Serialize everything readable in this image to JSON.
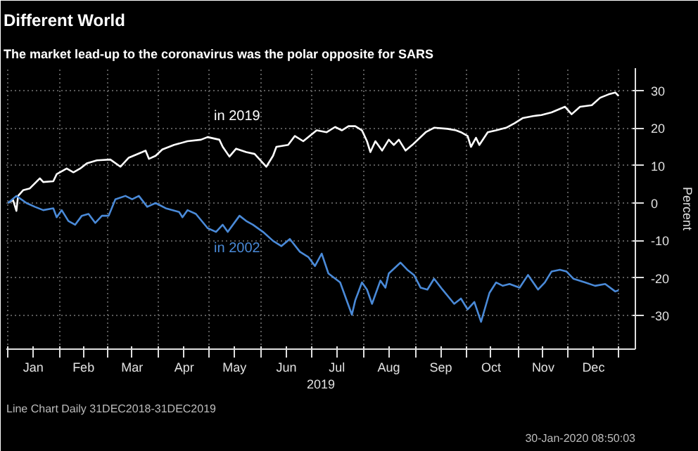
{
  "chart_data": {
    "type": "line",
    "title": "Different World",
    "subtitle": "The market lead-up to the coronavirus was the polar opposite for SARS",
    "xlabel": "2019",
    "ylabel": "Percent",
    "xlim": [
      "2018-12-31",
      "2020-01-10"
    ],
    "xticks": [
      {
        "value": "2019-01-01",
        "label": null
      },
      {
        "value": "2019-01-16",
        "label": "Jan"
      },
      {
        "value": "2019-02-01",
        "label": null
      },
      {
        "value": "2019-02-15",
        "label": "Feb"
      },
      {
        "value": "2019-03-01",
        "label": null
      },
      {
        "value": "2019-03-16",
        "label": "Mar"
      },
      {
        "value": "2019-04-01",
        "label": null
      },
      {
        "value": "2019-04-16",
        "label": "Apr"
      },
      {
        "value": "2019-05-01",
        "label": null
      },
      {
        "value": "2019-05-16",
        "label": "May"
      },
      {
        "value": "2019-06-01",
        "label": null
      },
      {
        "value": "2019-06-16",
        "label": "Jun"
      },
      {
        "value": "2019-07-01",
        "label": null
      },
      {
        "value": "2019-07-16",
        "label": "Jul"
      },
      {
        "value": "2019-08-01",
        "label": null
      },
      {
        "value": "2019-08-16",
        "label": "Aug"
      },
      {
        "value": "2019-09-01",
        "label": null
      },
      {
        "value": "2019-09-16",
        "label": "Sep"
      },
      {
        "value": "2019-10-01",
        "label": null
      },
      {
        "value": "2019-10-16",
        "label": "Oct"
      },
      {
        "value": "2019-11-01",
        "label": null
      },
      {
        "value": "2019-11-16",
        "label": "Nov"
      },
      {
        "value": "2019-12-01",
        "label": null
      },
      {
        "value": "2019-12-16",
        "label": "Dec"
      },
      {
        "value": "2019-12-31",
        "label": null
      }
    ],
    "ylim": [
      -39,
      36
    ],
    "yticks": [
      -30,
      -20,
      -10,
      0,
      10,
      20,
      30
    ],
    "grid": true,
    "legend": false,
    "line_style": "solid",
    "annotations": [
      "Line Chart  Daily 31DEC2018-31DEC2019",
      "30-Jan-2020 08:50:03"
    ],
    "series": [
      {
        "name": "in 2019",
        "color": "#ffffff",
        "x": [
          "2019-01-01",
          "2019-01-04",
          "2019-01-06",
          "2019-01-07",
          "2019-01-10",
          "2019-01-14",
          "2019-01-20",
          "2019-01-22",
          "2019-01-28",
          "2019-01-30",
          "2019-02-05",
          "2019-02-09",
          "2019-02-13",
          "2019-02-17",
          "2019-02-23",
          "2019-03-03",
          "2019-03-09",
          "2019-03-14",
          "2019-03-22",
          "2019-03-24",
          "2019-03-26",
          "2019-03-30",
          "2019-04-03",
          "2019-04-10",
          "2019-04-18",
          "2019-04-26",
          "2019-04-30",
          "2019-05-07",
          "2019-05-09",
          "2019-05-13",
          "2019-05-17",
          "2019-05-23",
          "2019-05-28",
          "2019-06-04",
          "2019-06-08",
          "2019-06-10",
          "2019-06-17",
          "2019-06-21",
          "2019-06-26",
          "2019-07-04",
          "2019-07-10",
          "2019-07-15",
          "2019-07-19",
          "2019-07-23",
          "2019-07-27",
          "2019-07-31",
          "2019-08-03",
          "2019-08-05",
          "2019-08-08",
          "2019-08-12",
          "2019-08-16",
          "2019-08-19",
          "2019-08-22",
          "2019-08-26",
          "2019-08-30",
          "2019-09-07",
          "2019-09-12",
          "2019-09-20",
          "2019-09-25",
          "2019-09-28",
          "2019-10-02",
          "2019-10-04",
          "2019-10-07",
          "2019-10-09",
          "2019-10-14",
          "2019-10-19",
          "2019-10-25",
          "2019-10-30",
          "2019-11-04",
          "2019-11-10",
          "2019-11-15",
          "2019-11-21",
          "2019-11-29",
          "2019-12-03",
          "2019-12-08",
          "2019-12-15",
          "2019-12-20",
          "2019-12-25",
          "2019-12-29",
          "2019-12-31"
        ],
        "values": [
          0,
          0.8,
          -2.1,
          1.9,
          3.4,
          3.9,
          6.6,
          5.6,
          5.8,
          7.7,
          9.2,
          8.2,
          9.2,
          10.6,
          11.4,
          11.6,
          9.7,
          12.1,
          13.6,
          14.0,
          11.8,
          12.6,
          14.3,
          15.5,
          16.5,
          16.9,
          17.6,
          16.9,
          15.0,
          12.4,
          14.5,
          13.6,
          13.1,
          9.7,
          12.6,
          15.0,
          15.5,
          17.9,
          16.5,
          19.4,
          18.9,
          20.3,
          19.4,
          20.5,
          20.5,
          19.4,
          16.5,
          13.6,
          16.5,
          14.0,
          16.9,
          15.5,
          16.9,
          14.0,
          15.5,
          18.9,
          20.1,
          19.8,
          19.4,
          18.9,
          17.9,
          15.0,
          17.4,
          15.5,
          18.9,
          19.4,
          20.1,
          21.3,
          22.7,
          23.2,
          23.5,
          24.2,
          25.7,
          23.7,
          25.7,
          26.1,
          28.1,
          29.0,
          29.5,
          28.6
        ]
      },
      {
        "name": "in 2002",
        "color": "#4a8ad8",
        "x": [
          "2019-01-01",
          "2019-01-06",
          "2019-01-12",
          "2019-01-17",
          "2019-01-22",
          "2019-01-28",
          "2019-01-30",
          "2019-02-02",
          "2019-02-06",
          "2019-02-10",
          "2019-02-14",
          "2019-02-18",
          "2019-02-22",
          "2019-02-26",
          "2019-03-02",
          "2019-03-06",
          "2019-03-12",
          "2019-03-16",
          "2019-03-20",
          "2019-03-25",
          "2019-03-30",
          "2019-04-05",
          "2019-04-13",
          "2019-04-15",
          "2019-04-18",
          "2019-04-23",
          "2019-04-30",
          "2019-05-05",
          "2019-05-09",
          "2019-05-12",
          "2019-05-19",
          "2019-05-23",
          "2019-05-27",
          "2019-06-02",
          "2019-06-08",
          "2019-06-13",
          "2019-06-18",
          "2019-06-24",
          "2019-06-29",
          "2019-07-03",
          "2019-07-07",
          "2019-07-11",
          "2019-07-18",
          "2019-07-25",
          "2019-07-27",
          "2019-07-31",
          "2019-08-03",
          "2019-08-06",
          "2019-08-11",
          "2019-08-14",
          "2019-08-16",
          "2019-08-23",
          "2019-08-27",
          "2019-08-31",
          "2019-09-04",
          "2019-09-08",
          "2019-09-12",
          "2019-09-17",
          "2019-09-24",
          "2019-09-28",
          "2019-10-02",
          "2019-10-06",
          "2019-10-10",
          "2019-10-15",
          "2019-10-19",
          "2019-10-23",
          "2019-10-27",
          "2019-11-02",
          "2019-11-07",
          "2019-11-13",
          "2019-11-17",
          "2019-11-21",
          "2019-11-26",
          "2019-11-30",
          "2019-12-04",
          "2019-12-11",
          "2019-12-17",
          "2019-12-23",
          "2019-12-29",
          "2019-12-31"
        ],
        "values": [
          0,
          1.9,
          0,
          -1.0,
          -1.9,
          -1.4,
          -3.8,
          -1.9,
          -4.8,
          -5.8,
          -3.4,
          -2.9,
          -5.3,
          -3.4,
          -3.4,
          1.0,
          1.9,
          1.0,
          1.9,
          -1.0,
          0,
          -1.4,
          -2.4,
          -3.8,
          -1.9,
          -2.9,
          -6.7,
          -7.7,
          -5.8,
          -7.7,
          -3.4,
          -4.8,
          -5.8,
          -7.7,
          -10.1,
          -11.5,
          -9.6,
          -13.0,
          -14.4,
          -16.8,
          -13.5,
          -18.8,
          -21.2,
          -29.8,
          -26.0,
          -21.2,
          -23.1,
          -26.9,
          -20.7,
          -22.6,
          -18.8,
          -15.9,
          -17.8,
          -19.2,
          -22.6,
          -23.1,
          -20.2,
          -23.1,
          -26.9,
          -25.5,
          -28.4,
          -26.4,
          -31.7,
          -24.0,
          -21.2,
          -22.1,
          -21.6,
          -22.6,
          -19.2,
          -23.1,
          -21.2,
          -18.3,
          -17.8,
          -18.3,
          -20.2,
          -21.2,
          -22.1,
          -21.6,
          -23.6,
          -23.3
        ]
      }
    ]
  }
}
